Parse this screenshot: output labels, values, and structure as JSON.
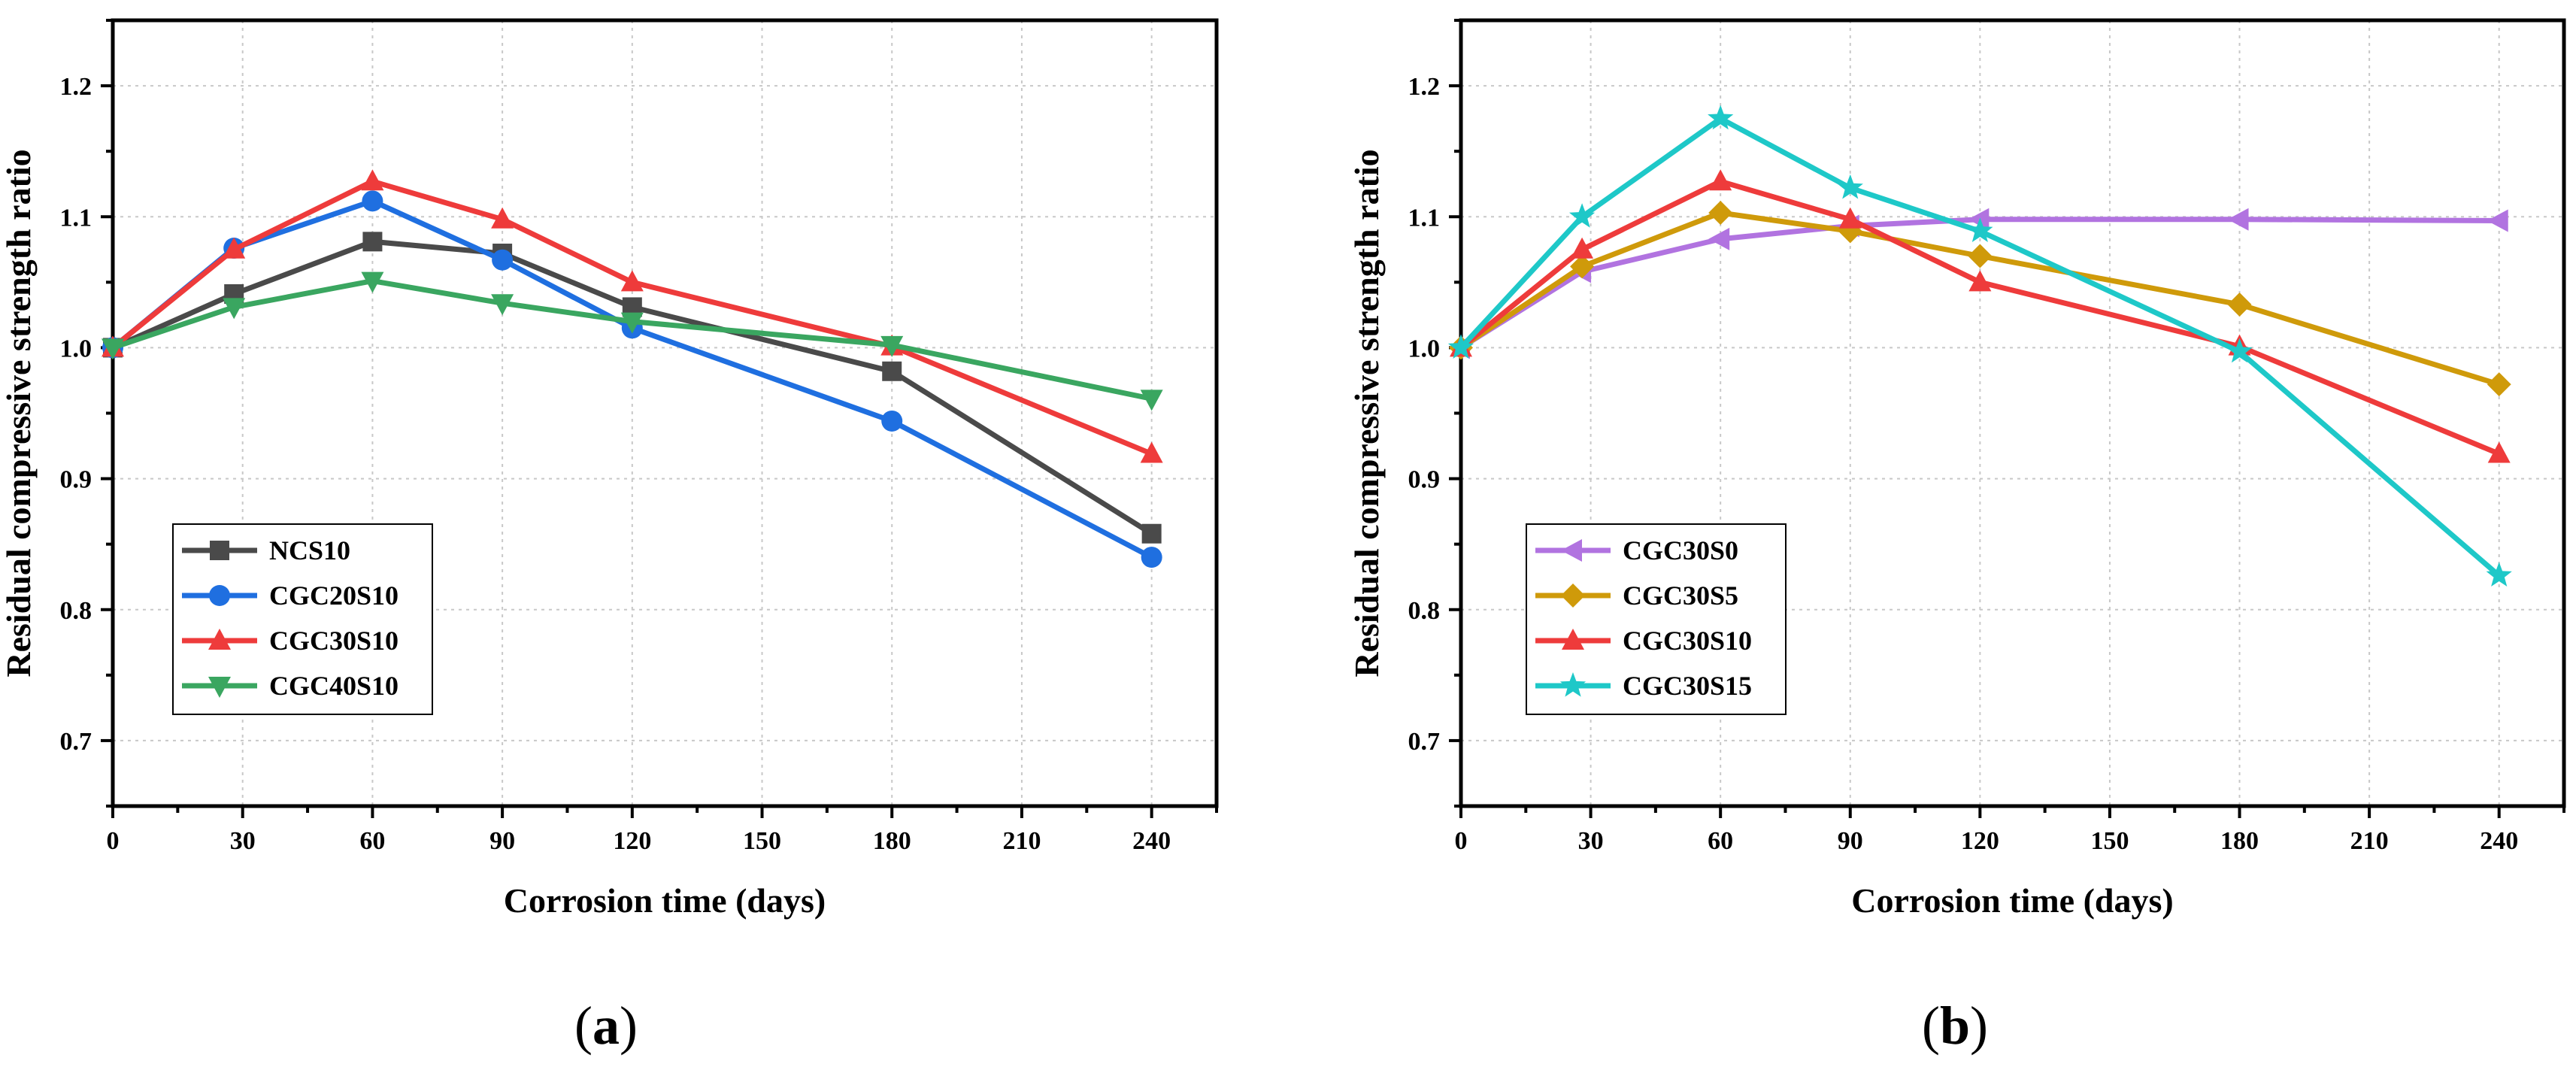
{
  "chart_data": [
    {
      "type": "line",
      "panel_label": "(a)",
      "xlabel": "Corrosion time (days)",
      "ylabel": "Residual compressive strength ratio",
      "xlim": [
        0,
        255
      ],
      "ylim": [
        0.65,
        1.25
      ],
      "xticks": [
        0,
        30,
        60,
        90,
        120,
        150,
        180,
        210,
        240
      ],
      "yticks": [
        0.7,
        0.8,
        0.9,
        1.0,
        1.1,
        1.2
      ],
      "grid": true,
      "legend_position": "bottom-left",
      "x": [
        0,
        28,
        60,
        90,
        120,
        180,
        240
      ],
      "series": [
        {
          "name": "NCS10",
          "color": "#4a4a4a",
          "marker": "square",
          "values": [
            1.0,
            1.041,
            1.081,
            1.072,
            1.031,
            0.982,
            0.858
          ]
        },
        {
          "name": "CGC20S10",
          "color": "#1f6fe0",
          "marker": "circle",
          "values": [
            1.0,
            1.076,
            1.112,
            1.067,
            1.015,
            0.944,
            0.84
          ]
        },
        {
          "name": "CGC30S10",
          "color": "#ee3b3b",
          "marker": "triangle-up",
          "values": [
            1.0,
            1.075,
            1.127,
            1.098,
            1.05,
            1.001,
            0.919
          ]
        },
        {
          "name": "CGC40S10",
          "color": "#3aa660",
          "marker": "triangle-down",
          "values": [
            1.0,
            1.031,
            1.051,
            1.034,
            1.02,
            1.002,
            0.961
          ]
        }
      ]
    },
    {
      "type": "line",
      "panel_label": "(b)",
      "xlabel": "Corrosion time (days)",
      "ylabel": "Residual compressive strength ratio",
      "xlim": [
        0,
        255
      ],
      "ylim": [
        0.65,
        1.25
      ],
      "xticks": [
        0,
        30,
        60,
        90,
        120,
        150,
        180,
        210,
        240
      ],
      "yticks": [
        0.7,
        0.8,
        0.9,
        1.0,
        1.1,
        1.2
      ],
      "grid": true,
      "legend_position": "bottom-left",
      "x": [
        0,
        28,
        60,
        90,
        120,
        180,
        240
      ],
      "series": [
        {
          "name": "CGC30S0",
          "color": "#b173e0",
          "marker": "triangle-left",
          "values": [
            1.0,
            1.058,
            1.083,
            1.093,
            1.098,
            1.098,
            1.097
          ]
        },
        {
          "name": "CGC30S5",
          "color": "#cf9a0a",
          "marker": "diamond",
          "values": [
            1.0,
            1.062,
            1.103,
            1.089,
            1.07,
            1.033,
            0.972
          ]
        },
        {
          "name": "CGC30S10",
          "color": "#ee3b3b",
          "marker": "triangle-up",
          "values": [
            1.0,
            1.075,
            1.127,
            1.098,
            1.05,
            1.001,
            0.919
          ]
        },
        {
          "name": "CGC30S15",
          "color": "#1ec8c8",
          "marker": "star",
          "values": [
            1.0,
            1.1,
            1.175,
            1.122,
            1.089,
            0.997,
            0.826
          ]
        }
      ]
    }
  ]
}
